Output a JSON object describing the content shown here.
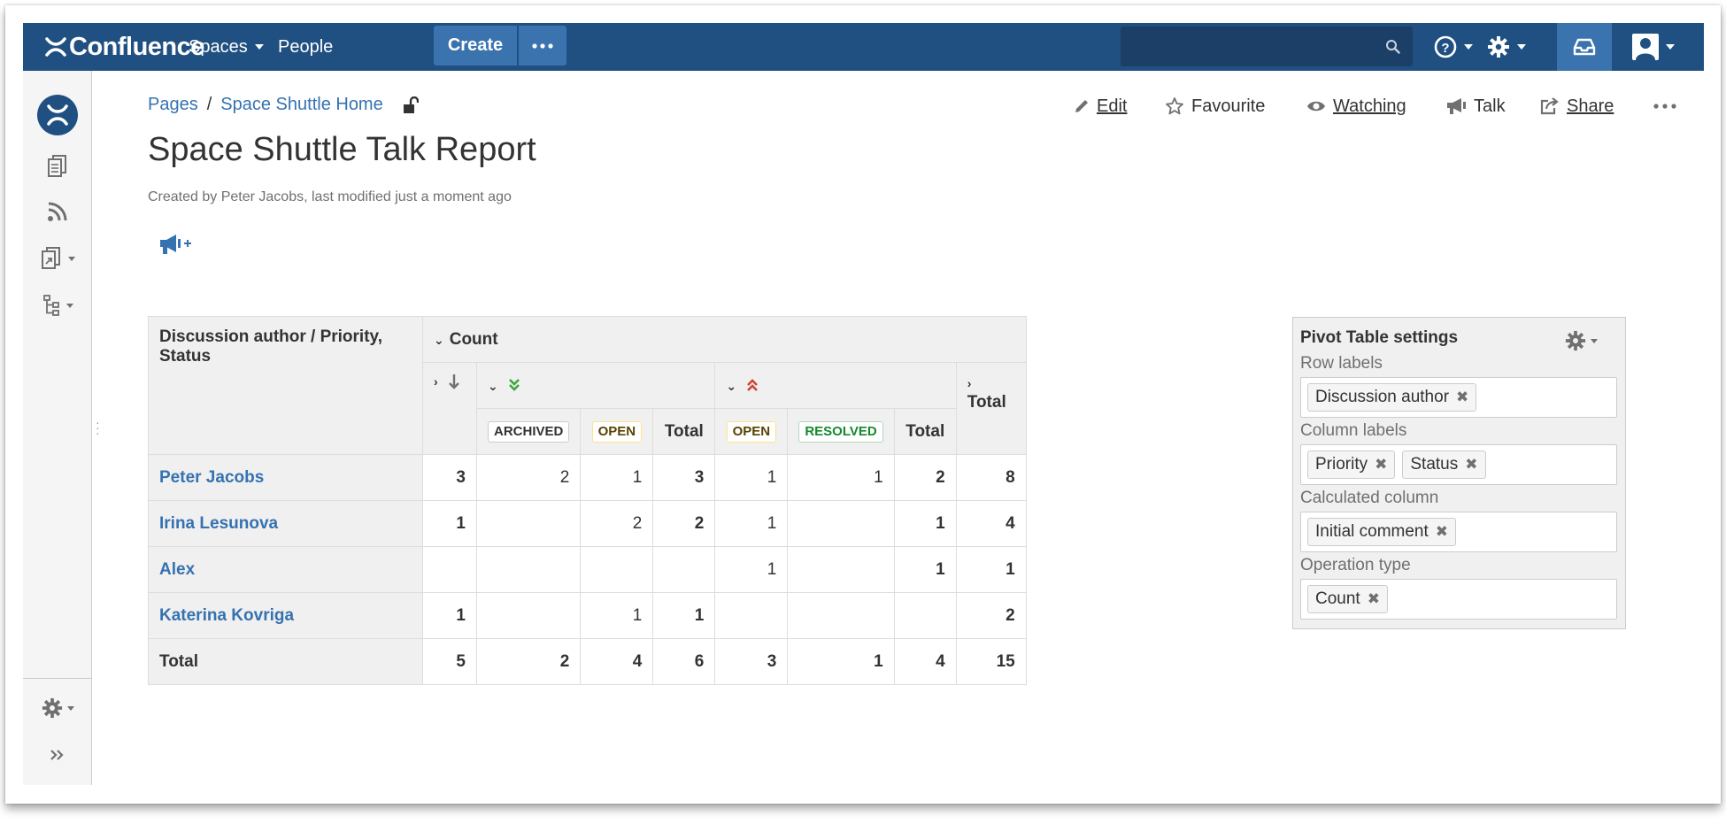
{
  "header": {
    "logo": "Confluence",
    "nav": [
      "Spaces",
      "People"
    ],
    "create_label": "Create"
  },
  "breadcrumb": [
    "Pages",
    "Space Shuttle Home"
  ],
  "actions": {
    "edit": "Edit",
    "favourite": "Favourite",
    "watching": "Watching",
    "talk": "Talk",
    "share": "Share"
  },
  "page": {
    "title": "Space Shuttle Talk Report",
    "byline": "Created by Peter Jacobs, last modified just a moment ago"
  },
  "pivot": {
    "corner": "Discussion author / Priority, Status",
    "count_label": "Count",
    "total_label": "Total",
    "status": {
      "archived": "ARCHIVED",
      "open": "OPEN",
      "resolved": "RESOLVED"
    },
    "rows": [
      {
        "author": "Peter Jacobs",
        "low": "3",
        "med_archived": "2",
        "med_open": "1",
        "med_total": "3",
        "high_open": "1",
        "high_resolved": "1",
        "high_total": "2",
        "total": "8"
      },
      {
        "author": "Irina Lesunova",
        "low": "1",
        "med_archived": "",
        "med_open": "2",
        "med_total": "2",
        "high_open": "1",
        "high_resolved": "",
        "high_total": "1",
        "total": "4"
      },
      {
        "author": "Alex",
        "low": "",
        "med_archived": "",
        "med_open": "",
        "med_total": "",
        "high_open": "1",
        "high_resolved": "",
        "high_total": "1",
        "total": "1"
      },
      {
        "author": "Katerina Kovriga",
        "low": "1",
        "med_archived": "",
        "med_open": "1",
        "med_total": "1",
        "high_open": "",
        "high_resolved": "",
        "high_total": "",
        "total": "2"
      }
    ],
    "totals": {
      "label": "Total",
      "low": "5",
      "med_archived": "2",
      "med_open": "4",
      "med_total": "6",
      "high_open": "3",
      "high_resolved": "1",
      "high_total": "4",
      "total": "15"
    }
  },
  "settings": {
    "title": "Pivot Table settings",
    "row_labels": {
      "label": "Row labels",
      "chips": [
        "Discussion author"
      ]
    },
    "column_labels": {
      "label": "Column labels",
      "chips": [
        "Priority",
        "Status"
      ]
    },
    "calculated": {
      "label": "Calculated column",
      "chips": [
        "Initial comment"
      ]
    },
    "operation": {
      "label": "Operation type",
      "chips": [
        "Count"
      ]
    }
  },
  "colors": {
    "header_bg": "#205081",
    "button_bg": "#3b73af",
    "link": "#3572b0"
  }
}
